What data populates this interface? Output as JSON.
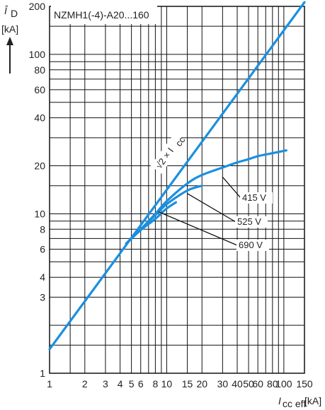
{
  "chart_data": {
    "type": "line",
    "title": "NZMH1(-4)-A20...160",
    "xscale": "log",
    "yscale": "log",
    "xlim": [
      1,
      150
    ],
    "ylim": [
      1,
      200
    ],
    "grid": true,
    "xlabel": {
      "symbol": "I",
      "sub": "cc eff",
      "unit": "[kA]"
    },
    "ylabel": {
      "symbol": "Î",
      "sub": "D",
      "unit": "[kA]"
    },
    "x_ticks": [
      1,
      2,
      3,
      4,
      5,
      6,
      8,
      10,
      15,
      20,
      30,
      40,
      50,
      60,
      80,
      100,
      150
    ],
    "x_tick_labels": [
      "1",
      "2",
      "3",
      "4",
      "5",
      "6",
      "8",
      "10",
      "15",
      "20",
      "30",
      "40",
      "50",
      "60",
      "80",
      "100",
      "150"
    ],
    "y_ticks": [
      1,
      3,
      4,
      6,
      8,
      10,
      20,
      40,
      60,
      80,
      100,
      200
    ],
    "y_tick_labels": [
      "1",
      "3",
      "4",
      "6",
      "8",
      "10",
      "20",
      "40",
      "60",
      "80",
      "100",
      "200"
    ],
    "x_grid": [
      1,
      1.5,
      2,
      3,
      4,
      5,
      6,
      7,
      8,
      9,
      10,
      15,
      20,
      30,
      40,
      50,
      60,
      70,
      80,
      90,
      100,
      150
    ],
    "y_grid": [
      1,
      1.5,
      2,
      3,
      4,
      5,
      6,
      7,
      8,
      9,
      10,
      15,
      20,
      30,
      40,
      50,
      60,
      70,
      80,
      90,
      100,
      150,
      200
    ],
    "series": [
      {
        "name": "√2 × Icc",
        "x": [
          1,
          150
        ],
        "y": [
          1.414,
          212.1
        ]
      },
      {
        "name": "415 V",
        "x": [
          4.5,
          6,
          8,
          10,
          15,
          20,
          30,
          40,
          50,
          60,
          80,
          105
        ],
        "y": [
          6.5,
          8,
          10,
          12,
          15.5,
          17.5,
          19.5,
          21,
          22,
          23,
          24,
          25
        ]
      },
      {
        "name": "525 V",
        "x": [
          4.5,
          6,
          8,
          10,
          15,
          20
        ],
        "y": [
          6.5,
          8,
          9.8,
          11.5,
          14,
          15
        ]
      },
      {
        "name": "690 V",
        "x": [
          4.5,
          6,
          8,
          10,
          12
        ],
        "y": [
          6.5,
          7.9,
          9.3,
          10.8,
          11.8
        ]
      }
    ],
    "annotations": [
      {
        "text": "√2 × I",
        "sub": "cc",
        "at": [
          8.8,
          19
        ]
      },
      {
        "text": "415 V",
        "points_to": [
          30,
          17
        ]
      },
      {
        "text": "525 V",
        "points_to": [
          15,
          13.4
        ]
      },
      {
        "text": "690 V",
        "points_to": [
          8.5,
          10.3
        ]
      }
    ],
    "colors": {
      "curve": "#1a8fe0",
      "grid": "#111111",
      "text": "#222222"
    }
  }
}
